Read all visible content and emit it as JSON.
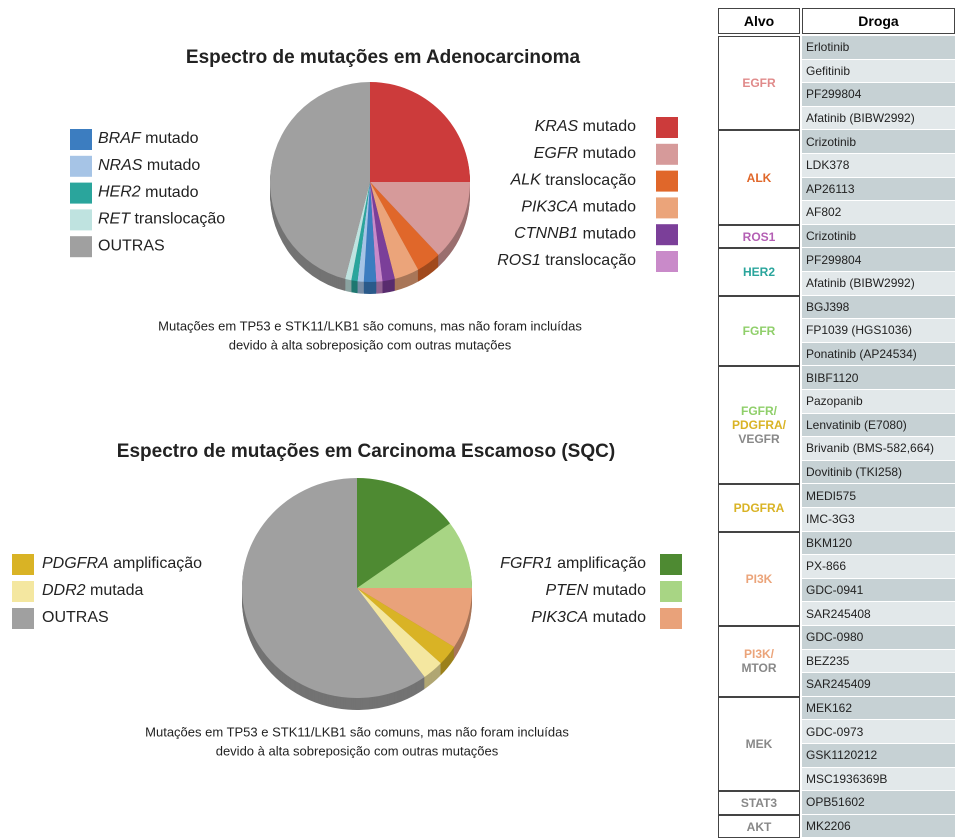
{
  "chart_data": [
    {
      "type": "pie",
      "title": "Espectro de mutações em Adenocarcinoma",
      "series": [
        {
          "name": "KRAS mutado",
          "color": "#cc3b3b",
          "value": 25
        },
        {
          "name": "EGFR mutado",
          "color": "#d69a9a",
          "value": 13
        },
        {
          "name": "ALK translocação",
          "color": "#e0672a",
          "value": 4
        },
        {
          "name": "PIK3CA mutado",
          "color": "#eba47a",
          "value": 4
        },
        {
          "name": "CTNNB1 mutado",
          "color": "#7b3f99",
          "value": 2
        },
        {
          "name": "ROS1 translocação",
          "color": "#c98ac9",
          "value": 1
        },
        {
          "name": "BRAF mutado",
          "color": "#3c7dc0",
          "value": 2
        },
        {
          "name": "NRAS mutado",
          "color": "#a6c4e6",
          "value": 1
        },
        {
          "name": "HER2 mutado",
          "color": "#2aa59c",
          "value": 1
        },
        {
          "name": "RET translocação",
          "color": "#bfe3e0",
          "value": 1
        },
        {
          "name": "OUTRAS",
          "color": "#a0a0a0",
          "value": 46
        }
      ],
      "note": [
        "Mutações em TP53 e STK11/LKB1 são comuns, mas não foram incluídas",
        "devido à alta sobreposição com outras mutações"
      ]
    },
    {
      "type": "pie",
      "title": "Espectro de mutações em Carcinoma Escamoso (SQC)",
      "series": [
        {
          "name": "FGFR1 amplificação",
          "color": "#4e8a32",
          "value": 15
        },
        {
          "name": "PTEN mutado",
          "color": "#a8d584",
          "value": 10
        },
        {
          "name": "PIK3CA mutado",
          "color": "#e9a27a",
          "value": 9
        },
        {
          "name": "PDGFRA amplificação",
          "color": "#d9b325",
          "value": 3
        },
        {
          "name": "DDR2 mutada",
          "color": "#f4e7a0",
          "value": 3
        },
        {
          "name": "OUTRAS",
          "color": "#a0a0a0",
          "value": 60
        }
      ],
      "note": [
        "Mutações em TP53 e STK11/LKB1 são comuns, mas não foram incluídas",
        "devido à alta sobreposição com outras mutações"
      ]
    }
  ],
  "table": {
    "header": [
      "Alvo",
      "Droga"
    ],
    "groups": [
      {
        "target": [
          {
            "text": "EGFR",
            "color": "#e08a8a"
          }
        ],
        "drugs": [
          "Erlotinib",
          "Gefitinib",
          "PF299804",
          "Afatinib (BIBW2992)"
        ]
      },
      {
        "target": [
          {
            "text": "ALK",
            "color": "#e0672a"
          }
        ],
        "drugs": [
          "Crizotinib",
          "LDK378",
          "AP26113",
          "AF802"
        ]
      },
      {
        "target": [
          {
            "text": "ROS1",
            "color": "#b45fb4"
          }
        ],
        "drugs": [
          "Crizotinib"
        ]
      },
      {
        "target": [
          {
            "text": "HER2",
            "color": "#2aa59c"
          }
        ],
        "drugs": [
          "PF299804",
          "Afatinib (BIBW2992)"
        ]
      },
      {
        "target": [
          {
            "text": "FGFR",
            "color": "#8fcf6a"
          }
        ],
        "drugs": [
          "BGJ398",
          "FP1039 (HGS1036)",
          "Ponatinib (AP24534)"
        ]
      },
      {
        "target": [
          {
            "text": "FGFR/",
            "color": "#8fcf6a"
          },
          {
            "text": "PDGFRA/",
            "color": "#d9b325"
          },
          {
            "text": "VEGFR",
            "color": "#888888"
          }
        ],
        "drugs": [
          "BIBF1120",
          "Pazopanib",
          "Lenvatinib (E7080)",
          "Brivanib (BMS-582,664)",
          "Dovitinib (TKI258)"
        ]
      },
      {
        "target": [
          {
            "text": "PDGFRA",
            "color": "#d9b325"
          }
        ],
        "drugs": [
          "MEDI575",
          "IMC-3G3"
        ]
      },
      {
        "target": [
          {
            "text": "PI3K",
            "color": "#eba47a"
          }
        ],
        "drugs": [
          "BKM120",
          "PX-866",
          "GDC-0941",
          "SAR245408"
        ]
      },
      {
        "target": [
          {
            "text": "PI3K/",
            "color": "#eba47a"
          },
          {
            "text": "MTOR",
            "color": "#888888"
          }
        ],
        "drugs": [
          "GDC-0980",
          "BEZ235",
          "SAR245409"
        ]
      },
      {
        "target": [
          {
            "text": "MEK",
            "color": "#888888"
          }
        ],
        "drugs": [
          "MEK162",
          "GDC-0973",
          "GSK1120212",
          "MSC1936369B"
        ]
      },
      {
        "target": [
          {
            "text": "STAT3",
            "color": "#888888"
          }
        ],
        "drugs": [
          "OPB51602"
        ]
      },
      {
        "target": [
          {
            "text": "AKT",
            "color": "#888888"
          }
        ],
        "drugs": [
          "MK2206"
        ]
      }
    ]
  }
}
